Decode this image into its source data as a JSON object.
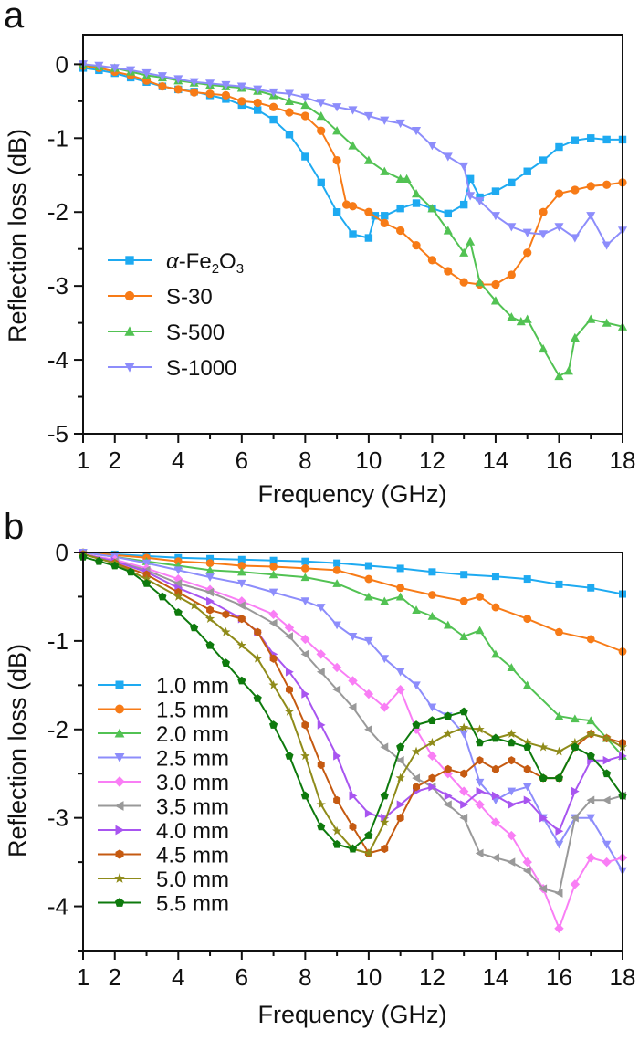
{
  "chart_data": [
    {
      "panel_label": "a",
      "type": "line",
      "title": "",
      "xlabel": "Frequency (GHz)",
      "ylabel": "Reflection loss (dB)",
      "xlim": [
        1,
        18
      ],
      "ylim": [
        -5,
        0.4
      ],
      "xticks": [
        1,
        2,
        4,
        6,
        8,
        10,
        12,
        14,
        16,
        18
      ],
      "yticks": [
        0,
        -1,
        -2,
        -3,
        -4,
        -5
      ],
      "grid": false,
      "legend_position": "center-left",
      "series": [
        {
          "name": "α-Fe2O3",
          "label_main": "α-Fe",
          "sub1": "2",
          "mid": "O",
          "sub2": "3",
          "color": "#1eaaf1",
          "marker": "square",
          "x": [
            1,
            1.5,
            2,
            2.5,
            3,
            3.5,
            4,
            4.5,
            5,
            5.5,
            6,
            6.5,
            7,
            7.5,
            8,
            8.5,
            9,
            9.5,
            10,
            10.2,
            10.5,
            11,
            11.5,
            12,
            12.5,
            13,
            13.2,
            13.5,
            14,
            14.5,
            15,
            15.5,
            16,
            16.5,
            17,
            17.5,
            18
          ],
          "y": [
            -0.05,
            -0.08,
            -0.12,
            -0.18,
            -0.24,
            -0.3,
            -0.34,
            -0.37,
            -0.42,
            -0.47,
            -0.55,
            -0.62,
            -0.75,
            -0.95,
            -1.25,
            -1.6,
            -2.0,
            -2.3,
            -2.35,
            -2.05,
            -2.05,
            -1.95,
            -1.88,
            -1.95,
            -2.02,
            -1.9,
            -1.55,
            -1.8,
            -1.72,
            -1.6,
            -1.45,
            -1.3,
            -1.12,
            -1.03,
            -1.0,
            -1.02,
            -1.02
          ]
        },
        {
          "name": "S-30",
          "label_main": "S-30",
          "color": "#f77b17",
          "marker": "circle",
          "x": [
            1,
            1.5,
            2,
            2.5,
            3,
            3.5,
            4,
            4.5,
            5,
            5.5,
            6,
            6.5,
            7,
            7.5,
            8,
            8.5,
            9,
            9.3,
            9.5,
            10,
            10.5,
            11,
            11.5,
            12,
            12.5,
            13,
            13.5,
            14,
            14.5,
            15,
            15.5,
            16,
            16.5,
            17,
            17.5,
            18
          ],
          "y": [
            -0.02,
            -0.05,
            -0.1,
            -0.15,
            -0.22,
            -0.3,
            -0.34,
            -0.38,
            -0.4,
            -0.42,
            -0.5,
            -0.52,
            -0.58,
            -0.65,
            -0.7,
            -0.9,
            -1.3,
            -1.9,
            -1.92,
            -2.0,
            -2.15,
            -2.25,
            -2.45,
            -2.65,
            -2.8,
            -2.95,
            -2.98,
            -2.98,
            -2.85,
            -2.55,
            -2.0,
            -1.75,
            -1.7,
            -1.65,
            -1.63,
            -1.6
          ]
        },
        {
          "name": "S-500",
          "label_main": "S-500",
          "color": "#52c253",
          "marker": "triangle-up",
          "x": [
            1,
            1.5,
            2,
            2.5,
            3,
            3.5,
            4,
            4.5,
            5,
            5.5,
            6,
            6.5,
            7,
            7.5,
            8,
            8.5,
            9,
            9.5,
            10,
            10.5,
            11,
            11.2,
            11.5,
            12,
            12.5,
            13,
            13.2,
            13.5,
            14,
            14.5,
            14.8,
            15,
            15.5,
            16,
            16.3,
            16.5,
            17,
            17.5,
            18
          ],
          "y": [
            0,
            -0.03,
            -0.05,
            -0.1,
            -0.15,
            -0.18,
            -0.22,
            -0.25,
            -0.28,
            -0.3,
            -0.32,
            -0.36,
            -0.42,
            -0.5,
            -0.55,
            -0.7,
            -0.9,
            -1.1,
            -1.3,
            -1.45,
            -1.55,
            -1.55,
            -1.75,
            -1.95,
            -2.25,
            -2.55,
            -2.4,
            -2.95,
            -3.2,
            -3.42,
            -3.48,
            -3.45,
            -3.85,
            -4.22,
            -4.15,
            -3.7,
            -3.45,
            -3.5,
            -3.55
          ]
        },
        {
          "name": "S-1000",
          "label_main": "S-1000",
          "color": "#8d8dfb",
          "marker": "triangle-down",
          "x": [
            1,
            1.5,
            2,
            2.5,
            3,
            3.5,
            4,
            4.5,
            5,
            5.5,
            6,
            6.5,
            7,
            7.5,
            8,
            8.5,
            9,
            9.5,
            10,
            10.5,
            11,
            11.5,
            12,
            12.5,
            13,
            13.2,
            13.5,
            14,
            14.5,
            15,
            15.5,
            16,
            16.5,
            17,
            17.5,
            18
          ],
          "y": [
            0,
            -0.02,
            -0.05,
            -0.08,
            -0.12,
            -0.16,
            -0.2,
            -0.24,
            -0.26,
            -0.28,
            -0.3,
            -0.34,
            -0.38,
            -0.4,
            -0.45,
            -0.52,
            -0.58,
            -0.62,
            -0.7,
            -0.76,
            -0.8,
            -0.9,
            -1.1,
            -1.25,
            -1.38,
            -1.78,
            -1.85,
            -2.05,
            -2.2,
            -2.28,
            -2.3,
            -2.2,
            -2.35,
            -2.05,
            -2.45,
            -2.25
          ]
        }
      ]
    },
    {
      "panel_label": "b",
      "type": "line",
      "title": "",
      "xlabel": "Frequency (GHz)",
      "ylabel": "Reflection loss (dB)",
      "xlim": [
        1,
        18
      ],
      "ylim": [
        -4.5,
        0
      ],
      "xticks": [
        1,
        2,
        4,
        6,
        8,
        10,
        12,
        14,
        16,
        18
      ],
      "yticks": [
        0,
        -1,
        -2,
        -3,
        -4
      ],
      "grid": false,
      "legend_position": "left",
      "series": [
        {
          "name": "1.0 mm",
          "color": "#1eaaf1",
          "marker": "square",
          "x": [
            1,
            2,
            3,
            4,
            5,
            6,
            7,
            8,
            9,
            10,
            11,
            12,
            13,
            14,
            15,
            16,
            17,
            18
          ],
          "y": [
            0,
            -0.02,
            -0.04,
            -0.06,
            -0.07,
            -0.08,
            -0.09,
            -0.1,
            -0.12,
            -0.15,
            -0.18,
            -0.22,
            -0.25,
            -0.27,
            -0.3,
            -0.36,
            -0.4,
            -0.47
          ]
        },
        {
          "name": "1.5 mm",
          "color": "#f77b17",
          "marker": "circle",
          "x": [
            1,
            2,
            3,
            4,
            5,
            6,
            7,
            8,
            9,
            10,
            11,
            12,
            13,
            13.5,
            14,
            15,
            16,
            17,
            18
          ],
          "y": [
            0,
            -0.03,
            -0.06,
            -0.1,
            -0.12,
            -0.15,
            -0.16,
            -0.18,
            -0.2,
            -0.3,
            -0.4,
            -0.48,
            -0.55,
            -0.5,
            -0.62,
            -0.75,
            -0.9,
            -0.98,
            -1.12
          ]
        },
        {
          "name": "2.0 mm",
          "color": "#52c253",
          "marker": "triangle-up",
          "x": [
            1,
            2,
            3,
            4,
            5,
            6,
            7,
            8,
            9,
            10,
            10.5,
            11,
            11.5,
            12,
            12.5,
            13,
            13.5,
            14,
            14.5,
            15,
            16,
            16.5,
            17,
            17.5,
            18
          ],
          "y": [
            0,
            -0.05,
            -0.1,
            -0.15,
            -0.2,
            -0.22,
            -0.25,
            -0.28,
            -0.35,
            -0.5,
            -0.55,
            -0.5,
            -0.65,
            -0.72,
            -0.82,
            -0.95,
            -0.88,
            -1.15,
            -1.3,
            -1.5,
            -1.85,
            -1.88,
            -1.9,
            -2.1,
            -2.3
          ]
        },
        {
          "name": "2.5 mm",
          "color": "#8d8dfb",
          "marker": "triangle-down",
          "x": [
            1,
            2,
            3,
            4,
            5,
            6,
            7,
            8,
            8.5,
            9,
            9.5,
            10,
            10.5,
            11,
            11.5,
            12,
            12.5,
            13,
            13.5,
            14,
            14.5,
            15,
            15.5,
            16,
            16.5,
            17,
            17.5,
            18
          ],
          "y": [
            0,
            -0.05,
            -0.12,
            -0.2,
            -0.28,
            -0.35,
            -0.45,
            -0.55,
            -0.62,
            -0.82,
            -0.95,
            -1.0,
            -1.2,
            -1.35,
            -1.5,
            -1.75,
            -1.85,
            -2.05,
            -2.6,
            -2.8,
            -2.7,
            -2.65,
            -3.0,
            -3.3,
            -3.0,
            -3.0,
            -3.3,
            -3.6
          ]
        },
        {
          "name": "3.0 mm",
          "color": "#f97ef5",
          "marker": "diamond",
          "x": [
            1,
            2,
            3,
            4,
            5,
            6,
            7,
            7.5,
            8,
            8.5,
            9,
            9.5,
            10,
            10.5,
            11,
            11.5,
            12,
            12.5,
            13,
            13.5,
            14,
            14.5,
            15,
            15.5,
            16,
            16.5,
            17,
            17.5,
            18
          ],
          "y": [
            -0.02,
            -0.08,
            -0.18,
            -0.3,
            -0.42,
            -0.55,
            -0.7,
            -0.85,
            -0.98,
            -1.15,
            -1.3,
            -1.45,
            -1.6,
            -1.75,
            -1.55,
            -2.0,
            -2.3,
            -2.5,
            -2.7,
            -2.85,
            -3.05,
            -3.2,
            -3.5,
            -3.8,
            -4.25,
            -3.75,
            -3.45,
            -3.5,
            -3.45
          ]
        },
        {
          "name": "3.5 mm",
          "color": "#999999",
          "marker": "triangle-left",
          "x": [
            1,
            2,
            3,
            4,
            5,
            6,
            7,
            7.5,
            8,
            8.5,
            9,
            9.5,
            10,
            10.5,
            11,
            11.5,
            12,
            12.5,
            13,
            13.5,
            14,
            14.5,
            15,
            15.5,
            16,
            16.5,
            17,
            17.5,
            18
          ],
          "y": [
            -0.02,
            -0.1,
            -0.2,
            -0.35,
            -0.45,
            -0.6,
            -0.8,
            -0.95,
            -1.15,
            -1.35,
            -1.55,
            -1.75,
            -2.0,
            -2.2,
            -2.35,
            -2.55,
            -2.65,
            -2.85,
            -3.0,
            -3.4,
            -3.45,
            -3.5,
            -3.6,
            -3.8,
            -3.85,
            -3.0,
            -2.8,
            -2.8,
            -2.75
          ]
        },
        {
          "name": "4.0 mm",
          "color": "#a855f0",
          "marker": "triangle-right",
          "x": [
            1,
            2,
            3,
            4,
            5,
            6,
            6.5,
            7,
            7.5,
            8,
            8.5,
            9,
            9.5,
            10,
            10.5,
            11,
            11.5,
            12,
            12.5,
            13,
            13.5,
            14,
            14.5,
            15,
            15.5,
            16,
            16.5,
            17,
            17.5,
            18
          ],
          "y": [
            -0.02,
            -0.1,
            -0.22,
            -0.4,
            -0.55,
            -0.75,
            -0.9,
            -1.15,
            -1.35,
            -1.6,
            -1.95,
            -2.3,
            -2.75,
            -2.95,
            -3.0,
            -2.85,
            -2.7,
            -2.65,
            -2.75,
            -2.85,
            -2.7,
            -2.75,
            -2.85,
            -2.8,
            -3.0,
            -3.15,
            -2.7,
            -2.35,
            -2.35,
            -2.3
          ]
        },
        {
          "name": "4.5 mm",
          "color": "#c55a11",
          "marker": "hexagon",
          "x": [
            1,
            2,
            3,
            4,
            5,
            5.5,
            6,
            6.5,
            7,
            7.5,
            8,
            8.5,
            9,
            9.5,
            10,
            10.5,
            11,
            11.5,
            12,
            12.5,
            13,
            13.5,
            14,
            14.5,
            15,
            15.5,
            16,
            16.5,
            17,
            17.5,
            18
          ],
          "y": [
            -0.02,
            -0.12,
            -0.25,
            -0.45,
            -0.65,
            -0.7,
            -0.75,
            -0.9,
            -1.2,
            -1.55,
            -1.95,
            -2.4,
            -2.8,
            -3.1,
            -3.4,
            -3.35,
            -3.0,
            -2.65,
            -2.55,
            -2.45,
            -2.5,
            -2.35,
            -2.45,
            -2.35,
            -2.45,
            -2.55,
            -2.55,
            -2.2,
            -2.05,
            -2.1,
            -2.15
          ]
        },
        {
          "name": "5.0 mm",
          "color": "#8f8b1a",
          "marker": "star",
          "x": [
            1,
            2,
            3,
            4,
            4.5,
            5,
            5.5,
            6,
            6.5,
            7,
            7.5,
            8,
            8.5,
            9,
            9.5,
            10,
            10.5,
            11,
            11.5,
            12,
            12.5,
            13,
            13.5,
            14,
            14.5,
            15,
            15.5,
            16,
            16.5,
            17,
            17.5,
            18
          ],
          "y": [
            -0.02,
            -0.12,
            -0.3,
            -0.5,
            -0.6,
            -0.75,
            -0.9,
            -1.05,
            -1.2,
            -1.5,
            -1.8,
            -2.3,
            -2.85,
            -3.15,
            -3.35,
            -3.4,
            -3.05,
            -2.55,
            -2.25,
            -2.15,
            -2.05,
            -1.98,
            -2.0,
            -2.1,
            -2.05,
            -2.15,
            -2.2,
            -2.25,
            -2.15,
            -2.05,
            -2.1,
            -2.2
          ]
        },
        {
          "name": "5.5 mm",
          "color": "#0e7a0d",
          "marker": "pentagon",
          "x": [
            1,
            1.5,
            2,
            2.5,
            3,
            3.5,
            4,
            4.5,
            5,
            5.5,
            6,
            6.5,
            7,
            7.5,
            8,
            8.5,
            9,
            9.5,
            10,
            10.5,
            11,
            11.5,
            12,
            12.5,
            13,
            13.5,
            14,
            14.5,
            15,
            15.5,
            16,
            16.5,
            17,
            17.5,
            18
          ],
          "y": [
            -0.05,
            -0.1,
            -0.15,
            -0.22,
            -0.35,
            -0.5,
            -0.68,
            -0.85,
            -1.05,
            -1.25,
            -1.45,
            -1.65,
            -1.95,
            -2.3,
            -2.75,
            -3.1,
            -3.3,
            -3.35,
            -3.2,
            -2.75,
            -2.2,
            -1.95,
            -1.9,
            -1.85,
            -1.8,
            -2.15,
            -2.1,
            -2.15,
            -2.2,
            -2.55,
            -2.55,
            -2.2,
            -2.3,
            -2.5,
            -2.75
          ]
        }
      ]
    }
  ]
}
